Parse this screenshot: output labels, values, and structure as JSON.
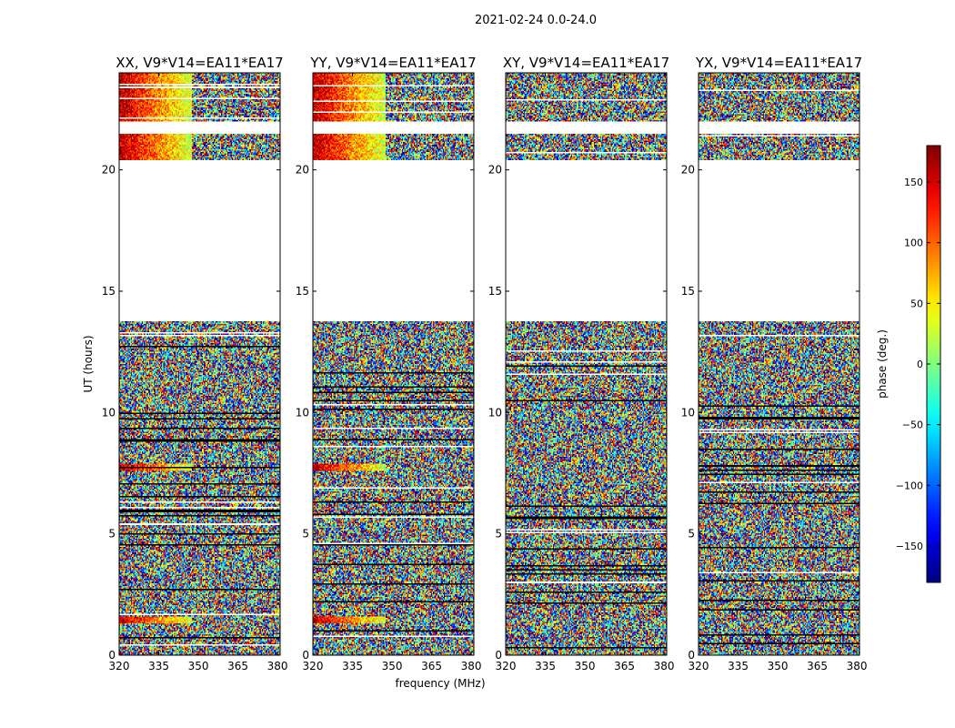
{
  "chart_data": {
    "type": "heatmap",
    "title": "2021-02-24 0.0-24.0",
    "xlabel": "frequency (MHz)",
    "ylabel": "UT (hours)",
    "xlim": [
      320,
      381
    ],
    "ylim": [
      0,
      24
    ],
    "xticks": [
      "320",
      "335",
      "350",
      "365",
      "380"
    ],
    "yticks": [
      "0",
      "5",
      "10",
      "15",
      "20"
    ],
    "panels": [
      {
        "title": "XX, V9*V14=EA11*EA17",
        "coherent": true
      },
      {
        "title": "YY, V9*V14=EA11*EA17",
        "coherent": true
      },
      {
        "title": "XY, V9*V14=EA11*EA17",
        "coherent": false
      },
      {
        "title": "YX, V9*V14=EA11*EA17",
        "coherent": false
      }
    ],
    "data_ut_ranges_hours": [
      [
        0,
        13.8
      ],
      [
        20.4,
        24.0
      ]
    ],
    "white_gap_ut_ranges_hours": [
      [
        13.8,
        20.4
      ],
      [
        21.5,
        22.0
      ]
    ],
    "colorbar": {
      "label": "phase (deg.)",
      "range": [
        -180,
        180
      ],
      "ticks": [
        "−150",
        "−100",
        "−50",
        "0",
        "50",
        "100",
        "150"
      ],
      "colormap": "jet"
    }
  }
}
